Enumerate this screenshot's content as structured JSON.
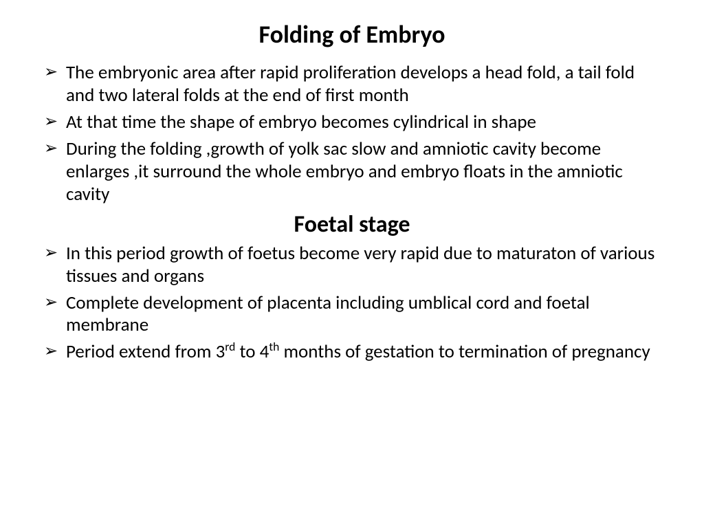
{
  "title1": "Folding of Embryo",
  "section1": {
    "items": [
      "The embryonic area after rapid proliferation develops a head fold, a tail fold and two lateral folds at the end of first month",
      "At that time the shape of embryo becomes cylindrical in shape",
      "During the folding ,growth of yolk sac slow and amniotic cavity become enlarges ,it surround the whole embryo and embryo floats in the amniotic cavity"
    ]
  },
  "title2": "Foetal stage",
  "section2": {
    "items": [
      "In this period growth of foetus become very rapid due to maturaton of various tissues and organs",
      "Complete development of placenta including umblical cord and foetal membrane"
    ],
    "last_item": {
      "pre": "Period extend from 3",
      "sup1": "rd",
      "mid": " to 4",
      "sup2": "th",
      "post": " months of gestation to termination of pregnancy"
    }
  },
  "colors": {
    "background": "#ffffff",
    "text": "#000000"
  },
  "typography": {
    "title_fontsize": 36,
    "subtitle_fontsize": 34,
    "body_fontsize": 27,
    "font_family": "Calibri"
  }
}
